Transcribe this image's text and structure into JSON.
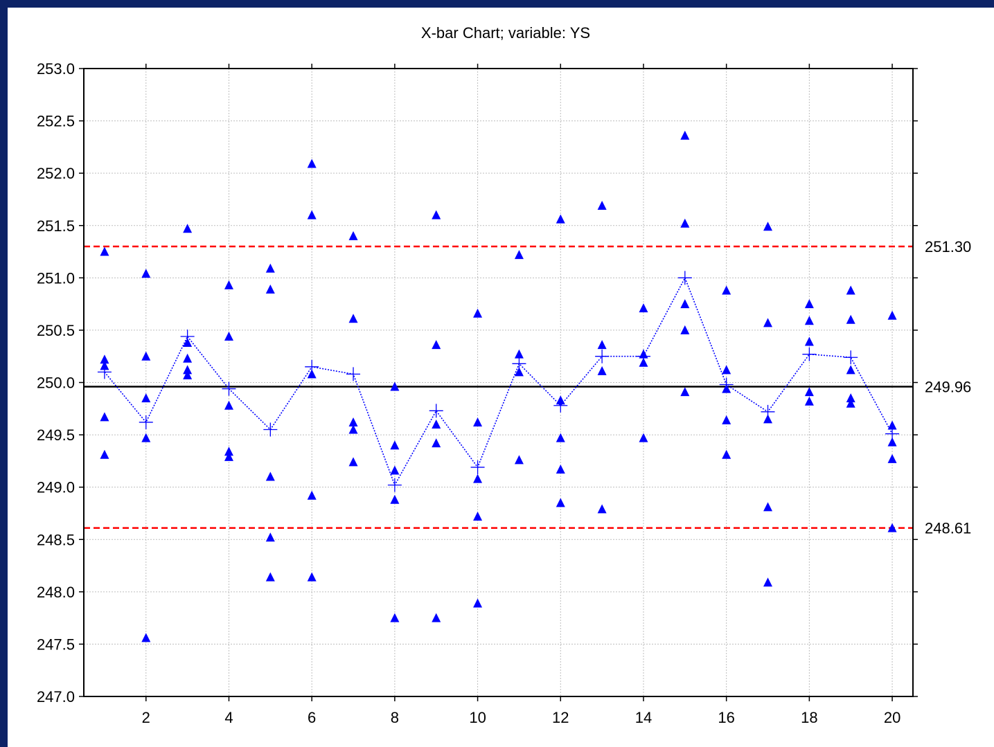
{
  "chart_data": {
    "type": "scatter",
    "title": "X-bar Chart; variable:  YS",
    "xlim": [
      0.5,
      20.5
    ],
    "ylim": [
      247.0,
      253.0
    ],
    "x_ticks": [
      2,
      4,
      6,
      8,
      10,
      12,
      14,
      16,
      18,
      20
    ],
    "y_ticks": [
      "247.0",
      "247.5",
      "248.0",
      "248.5",
      "249.0",
      "249.5",
      "250.0",
      "250.5",
      "251.0",
      "251.5",
      "252.0",
      "252.5",
      "253.0"
    ],
    "grid": true,
    "center_line": {
      "value": 249.96,
      "label": "249.96",
      "color": "#000000"
    },
    "control_limits": [
      {
        "value": 251.3,
        "label": "251.30",
        "color": "#ff0000"
      },
      {
        "value": 248.61,
        "label": "248.61",
        "color": "#ff0000"
      }
    ],
    "observations": {
      "color": "#0000ff",
      "marker": "triangle",
      "points": [
        [
          1,
          251.25
        ],
        [
          1,
          250.22
        ],
        [
          1,
          250.16
        ],
        [
          1,
          249.67
        ],
        [
          1,
          249.31
        ],
        [
          2,
          251.04
        ],
        [
          2,
          250.25
        ],
        [
          2,
          249.85
        ],
        [
          2,
          249.47
        ],
        [
          2,
          247.56
        ],
        [
          3,
          251.47
        ],
        [
          3,
          250.38
        ],
        [
          3,
          250.23
        ],
        [
          3,
          250.12
        ],
        [
          3,
          250.07
        ],
        [
          4,
          250.93
        ],
        [
          4,
          250.44
        ],
        [
          4,
          249.78
        ],
        [
          4,
          249.34
        ],
        [
          4,
          249.29
        ],
        [
          5,
          251.09
        ],
        [
          5,
          250.89
        ],
        [
          5,
          249.1
        ],
        [
          5,
          248.52
        ],
        [
          5,
          248.14
        ],
        [
          6,
          252.09
        ],
        [
          6,
          251.6
        ],
        [
          6,
          250.08
        ],
        [
          6,
          248.92
        ],
        [
          6,
          248.14
        ],
        [
          7,
          251.4
        ],
        [
          7,
          250.61
        ],
        [
          7,
          249.62
        ],
        [
          7,
          249.55
        ],
        [
          7,
          249.24
        ],
        [
          8,
          249.96
        ],
        [
          8,
          249.4
        ],
        [
          8,
          249.16
        ],
        [
          8,
          248.88
        ],
        [
          8,
          247.75
        ],
        [
          9,
          251.6
        ],
        [
          9,
          250.36
        ],
        [
          9,
          249.6
        ],
        [
          9,
          249.42
        ],
        [
          9,
          247.75
        ],
        [
          10,
          250.66
        ],
        [
          10,
          249.62
        ],
        [
          10,
          249.08
        ],
        [
          10,
          248.72
        ],
        [
          10,
          247.89
        ],
        [
          11,
          251.22
        ],
        [
          11,
          250.27
        ],
        [
          11,
          250.1
        ],
        [
          11,
          249.26
        ],
        [
          12,
          251.56
        ],
        [
          12,
          249.83
        ],
        [
          12,
          249.47
        ],
        [
          12,
          249.17
        ],
        [
          12,
          248.85
        ],
        [
          13,
          251.69
        ],
        [
          13,
          250.36
        ],
        [
          13,
          250.11
        ],
        [
          13,
          248.79
        ],
        [
          14,
          250.71
        ],
        [
          14,
          250.27
        ],
        [
          14,
          250.19
        ],
        [
          14,
          249.47
        ],
        [
          15,
          252.36
        ],
        [
          15,
          251.52
        ],
        [
          15,
          250.75
        ],
        [
          15,
          250.5
        ],
        [
          15,
          249.91
        ],
        [
          16,
          250.88
        ],
        [
          16,
          250.12
        ],
        [
          16,
          249.94
        ],
        [
          16,
          249.64
        ],
        [
          16,
          249.31
        ],
        [
          17,
          251.49
        ],
        [
          17,
          250.57
        ],
        [
          17,
          249.65
        ],
        [
          17,
          248.81
        ],
        [
          17,
          248.09
        ],
        [
          18,
          250.75
        ],
        [
          18,
          250.59
        ],
        [
          18,
          250.39
        ],
        [
          18,
          249.91
        ],
        [
          18,
          249.82
        ],
        [
          19,
          250.88
        ],
        [
          19,
          250.6
        ],
        [
          19,
          250.12
        ],
        [
          19,
          249.85
        ],
        [
          19,
          249.8
        ],
        [
          20,
          250.64
        ],
        [
          20,
          249.59
        ],
        [
          20,
          249.43
        ],
        [
          20,
          249.27
        ],
        [
          20,
          248.61
        ]
      ]
    },
    "means": {
      "color": "#0000ff",
      "marker": "plus",
      "values": [
        250.1,
        249.62,
        250.44,
        249.94,
        249.55,
        250.15,
        250.08,
        249.02,
        249.73,
        249.19,
        250.18,
        249.78,
        250.25,
        250.25,
        251.0,
        249.98,
        249.72,
        250.27,
        250.24,
        249.51
      ]
    }
  }
}
